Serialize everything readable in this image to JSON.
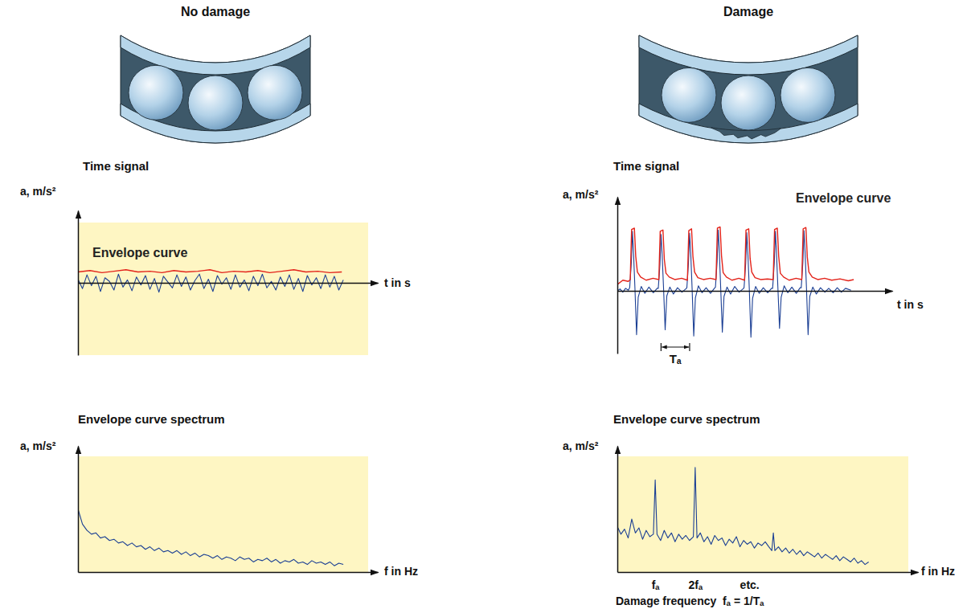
{
  "headings": [
    "No damage",
    "Damage"
  ],
  "footnote": "Damage frequency  fₐ = 1/Tₐ",
  "chart_data": [
    {
      "type": "line",
      "title": "Time signal",
      "y_label": "a, m/s²",
      "x_label": "t in s",
      "xlim": [
        0,
        100
      ],
      "ylim": [
        -1,
        1
      ],
      "tick_labels": false,
      "series": [
        {
          "color": "#1b3f94",
          "x": [
            0,
            1.5,
            3,
            4.5,
            6,
            7.5,
            9,
            10.5,
            12,
            13.5,
            15,
            16.5,
            18,
            19.5,
            21,
            22.5,
            24,
            25.5,
            27,
            28.5,
            30,
            31.5,
            33,
            34.5,
            36,
            37.5,
            39,
            40.5,
            42,
            43.5,
            45,
            46.5,
            48,
            49.5,
            51,
            52.5,
            54,
            55.5,
            57,
            58.5,
            60,
            61.5,
            63,
            64.5,
            66,
            67.5,
            69,
            70.5,
            72,
            73.5,
            75,
            76.5,
            78,
            79.5,
            81,
            82.5,
            84,
            85.5,
            87,
            88.5
          ],
          "values": [
            0.05,
            -0.08,
            0.11,
            -0.04,
            0.09,
            -0.12,
            0.07,
            0.02,
            -0.1,
            0.12,
            -0.06,
            0.04,
            -0.11,
            0.08,
            -0.03,
            0.1,
            -0.09,
            0.06,
            -0.13,
            0.09,
            0.01,
            -0.07,
            0.11,
            -0.05,
            0.08,
            -0.1,
            0.03,
            0.12,
            -0.08,
            0.05,
            -0.12,
            0.1,
            -0.02,
            0.07,
            -0.09,
            0.11,
            -0.06,
            0.04,
            -0.11,
            0.09,
            -0.04,
            0.12,
            -0.07,
            0.02,
            -0.1,
            0.08,
            -0.05,
            0.11,
            -0.09,
            0.06,
            -0.12,
            0.1,
            -0.03,
            0.07,
            -0.08,
            0.11,
            -0.06,
            0.09,
            -0.1,
            0.04
          ]
        },
        {
          "name": "Envelope curve",
          "color": "#e3241b",
          "x": [
            0,
            4,
            8,
            12,
            16,
            20,
            24,
            28,
            32,
            36,
            40,
            44,
            48,
            52,
            56,
            60,
            64,
            68,
            72,
            76,
            80,
            84,
            88
          ],
          "values": [
            0.15,
            0.17,
            0.14,
            0.16,
            0.18,
            0.15,
            0.16,
            0.14,
            0.17,
            0.15,
            0.16,
            0.18,
            0.14,
            0.16,
            0.15,
            0.17,
            0.14,
            0.16,
            0.18,
            0.15,
            0.16,
            0.14,
            0.15
          ]
        }
      ]
    },
    {
      "type": "line",
      "title": "Envelope curve spectrum",
      "y_label": "a, m/s²",
      "x_label": "f in Hz",
      "xlim": [
        0,
        100
      ],
      "ylim": [
        0,
        1
      ],
      "tick_labels": false,
      "series": [
        {
          "color": "#1b3f94",
          "x": [
            0,
            1.5,
            3,
            4.5,
            6,
            7.5,
            9,
            10.5,
            12,
            13.5,
            15,
            16.5,
            18,
            19.5,
            21,
            22.5,
            24,
            25.5,
            27,
            28.5,
            30,
            31.5,
            33,
            34.5,
            36,
            37.5,
            39,
            40.5,
            42,
            43.5,
            45,
            46.5,
            48,
            49.5,
            51,
            52.5,
            54,
            55.5,
            57,
            58.5,
            60,
            61.5,
            63,
            64.5,
            66,
            67.5,
            69,
            70.5,
            72,
            73.5,
            75,
            76.5,
            78,
            79.5,
            81,
            82.5,
            84,
            85.5,
            87,
            88.5
          ],
          "values": [
            0.5,
            0.38,
            0.33,
            0.3,
            0.31,
            0.27,
            0.28,
            0.25,
            0.26,
            0.23,
            0.24,
            0.21,
            0.23,
            0.2,
            0.21,
            0.18,
            0.2,
            0.17,
            0.19,
            0.16,
            0.17,
            0.15,
            0.17,
            0.14,
            0.16,
            0.13,
            0.15,
            0.12,
            0.14,
            0.13,
            0.11,
            0.13,
            0.1,
            0.12,
            0.11,
            0.09,
            0.12,
            0.1,
            0.11,
            0.08,
            0.1,
            0.09,
            0.11,
            0.08,
            0.1,
            0.07,
            0.09,
            0.08,
            0.1,
            0.07,
            0.08,
            0.06,
            0.09,
            0.07,
            0.08,
            0.06,
            0.08,
            0.05,
            0.07,
            0.06
          ]
        }
      ]
    },
    {
      "type": "line",
      "title": "Time signal",
      "y_label": "a, m/s²",
      "x_label": "t in s",
      "xlim": [
        0,
        100
      ],
      "ylim": [
        -1,
        1.5
      ],
      "tick_labels": false,
      "series": [
        {
          "color": "#1b3f94",
          "x": [
            0,
            1,
            2,
            3,
            4,
            4.5,
            5.1,
            5.5,
            5.9,
            6.4,
            7,
            7.6,
            8.7,
            10,
            11.5,
            13.1,
            14.5,
            14.9,
            15.5,
            15.9,
            16.3,
            16.8,
            17.4,
            18,
            19.1,
            20.4,
            21.9,
            23.5,
            24.9,
            25.3,
            25.9,
            26.3,
            26.7,
            27.2,
            27.8,
            28.4,
            29.5,
            30.8,
            32.3,
            33.9,
            35.3,
            35.7,
            36.3,
            36.7,
            37.1,
            37.6,
            38.2,
            38.8,
            39.9,
            41.2,
            42.7,
            44.3,
            45.7,
            46.1,
            46.7,
            47.1,
            47.5,
            48,
            48.6,
            49.2,
            50.3,
            51.6,
            53.1,
            54.7,
            56.1,
            56.5,
            57.1,
            57.5,
            57.9,
            58.4,
            59,
            59.6,
            60.7,
            62,
            63.5,
            65.1,
            66.5,
            66.9,
            67.5,
            67.9,
            68.3,
            68.8,
            69.4,
            70,
            71.1,
            72.4,
            73.9,
            75.5,
            76.9,
            78.5,
            80,
            81.5,
            83,
            85
          ],
          "values": [
            0,
            0.03,
            -0.02,
            0.04,
            0.01,
            0.05,
            0.45,
            0.95,
            0.6,
            0.05,
            -0.7,
            -0.1,
            0.07,
            -0.04,
            0.06,
            -0.03,
            0.04,
            0.04,
            0.42,
            0.9,
            0.58,
            0.06,
            -0.62,
            -0.08,
            0.06,
            -0.05,
            0.05,
            -0.02,
            0.03,
            0.05,
            0.46,
            0.92,
            0.61,
            0.04,
            -0.72,
            -0.11,
            0.08,
            -0.03,
            0.05,
            -0.04,
            0.04,
            0.06,
            0.47,
            0.97,
            0.63,
            0.05,
            -0.66,
            -0.09,
            0.06,
            -0.05,
            0.07,
            -0.02,
            0.03,
            0.05,
            0.44,
            0.93,
            0.59,
            0.04,
            -0.74,
            -0.12,
            0.07,
            -0.04,
            0.05,
            -0.03,
            0.04,
            0.04,
            0.45,
            0.95,
            0.6,
            0.06,
            -0.6,
            -0.1,
            0.08,
            -0.03,
            0.06,
            -0.04,
            0.05,
            0.05,
            0.46,
            0.96,
            0.62,
            0.05,
            -0.7,
            -0.09,
            0.06,
            -0.05,
            0.05,
            -0.02,
            0.04,
            -0.03,
            0.05,
            -0.02,
            0.04,
            0.01
          ]
        },
        {
          "name": "Envelope curve",
          "color": "#e3241b",
          "x": [
            0,
            2,
            4,
            4.7,
            5.2,
            6.2,
            6.7,
            7.3,
            8.5,
            10.5,
            13,
            15.1,
            15.6,
            16.6,
            17.1,
            17.7,
            18.9,
            20.9,
            23.4,
            25.5,
            26,
            27,
            27.5,
            28.1,
            29.3,
            31.3,
            33.8,
            35.9,
            36.4,
            37.4,
            37.9,
            38.5,
            39.7,
            41.7,
            44.2,
            46.3,
            46.8,
            47.8,
            48.3,
            48.9,
            50.1,
            52.1,
            54.6,
            56.7,
            57.2,
            58.2,
            58.7,
            59.3,
            60.5,
            62.5,
            65,
            67.1,
            67.6,
            68.6,
            69.1,
            69.7,
            70.9,
            72.9,
            75.4,
            78,
            81,
            84,
            86
          ],
          "values": [
            0.1,
            0.17,
            0.15,
            0.18,
            0.98,
            1,
            0.55,
            0.3,
            0.22,
            0.17,
            0.2,
            0.18,
            0.95,
            0.97,
            0.5,
            0.28,
            0.22,
            0.18,
            0.2,
            0.17,
            0.96,
            0.99,
            0.55,
            0.3,
            0.21,
            0.18,
            0.2,
            0.18,
            1,
            1.02,
            0.56,
            0.29,
            0.22,
            0.17,
            0.2,
            0.17,
            0.97,
            0.99,
            0.52,
            0.3,
            0.21,
            0.18,
            0.19,
            0.18,
            0.98,
            1,
            0.55,
            0.28,
            0.22,
            0.17,
            0.2,
            0.18,
            0.99,
            1.01,
            0.54,
            0.3,
            0.22,
            0.18,
            0.2,
            0.17,
            0.19,
            0.16,
            0.18
          ]
        }
      ],
      "annotations": [
        {
          "text": "Tₐ",
          "x_from": 15.9,
          "x_to": 26.3
        }
      ]
    },
    {
      "type": "line",
      "title": "Envelope curve spectrum",
      "y_label": "a, m/s²",
      "x_label": "f in Hz",
      "xlim": [
        0,
        100
      ],
      "ylim": [
        0,
        1
      ],
      "tick_labels": "x",
      "xticks": [
        {
          "value": 12.6,
          "label": "fₐ"
        },
        {
          "value": 25.9,
          "label": "2fₐ"
        },
        {
          "value": 43.9,
          "label": "etc."
        }
      ],
      "series": [
        {
          "color": "#1b3f94",
          "x": [
            0,
            1.2,
            2.4,
            3.6,
            4.8,
            6,
            7.2,
            8.4,
            9.6,
            10.8,
            12,
            12.6,
            13.2,
            14.4,
            15.6,
            16.8,
            18,
            19.2,
            20.4,
            21.6,
            22.8,
            24,
            25.3,
            25.9,
            26.5,
            27.6,
            28.8,
            30,
            31.2,
            32.4,
            33.6,
            34.8,
            36,
            37.2,
            38.4,
            39.6,
            40.8,
            42,
            43.2,
            44.4,
            45.6,
            46.8,
            48,
            49.2,
            50.4,
            51.4,
            51.9,
            52.4,
            53.6,
            54.8,
            56,
            57.2,
            58.4,
            59.6,
            60.8,
            62,
            63.2,
            64.4,
            65.6,
            66.8,
            68,
            69.2,
            70.4,
            71.6,
            72.8,
            74,
            75.2,
            76.4,
            77.6,
            78.8,
            80,
            81.2,
            82.4,
            83.6
          ],
          "values": [
            0.36,
            0.3,
            0.34,
            0.27,
            0.42,
            0.31,
            0.35,
            0.26,
            0.33,
            0.28,
            0.3,
            0.73,
            0.3,
            0.25,
            0.33,
            0.27,
            0.31,
            0.24,
            0.3,
            0.26,
            0.29,
            0.25,
            0.28,
            0.83,
            0.27,
            0.31,
            0.24,
            0.28,
            0.22,
            0.29,
            0.25,
            0.27,
            0.21,
            0.26,
            0.23,
            0.28,
            0.2,
            0.25,
            0.22,
            0.24,
            0.19,
            0.23,
            0.21,
            0.24,
            0.2,
            0.17,
            0.31,
            0.17,
            0.2,
            0.16,
            0.19,
            0.15,
            0.18,
            0.14,
            0.17,
            0.13,
            0.16,
            0.14,
            0.12,
            0.15,
            0.11,
            0.14,
            0.12,
            0.1,
            0.13,
            0.09,
            0.12,
            0.1,
            0.08,
            0.11,
            0.07,
            0.09,
            0.06,
            0.08
          ]
        }
      ]
    }
  ]
}
